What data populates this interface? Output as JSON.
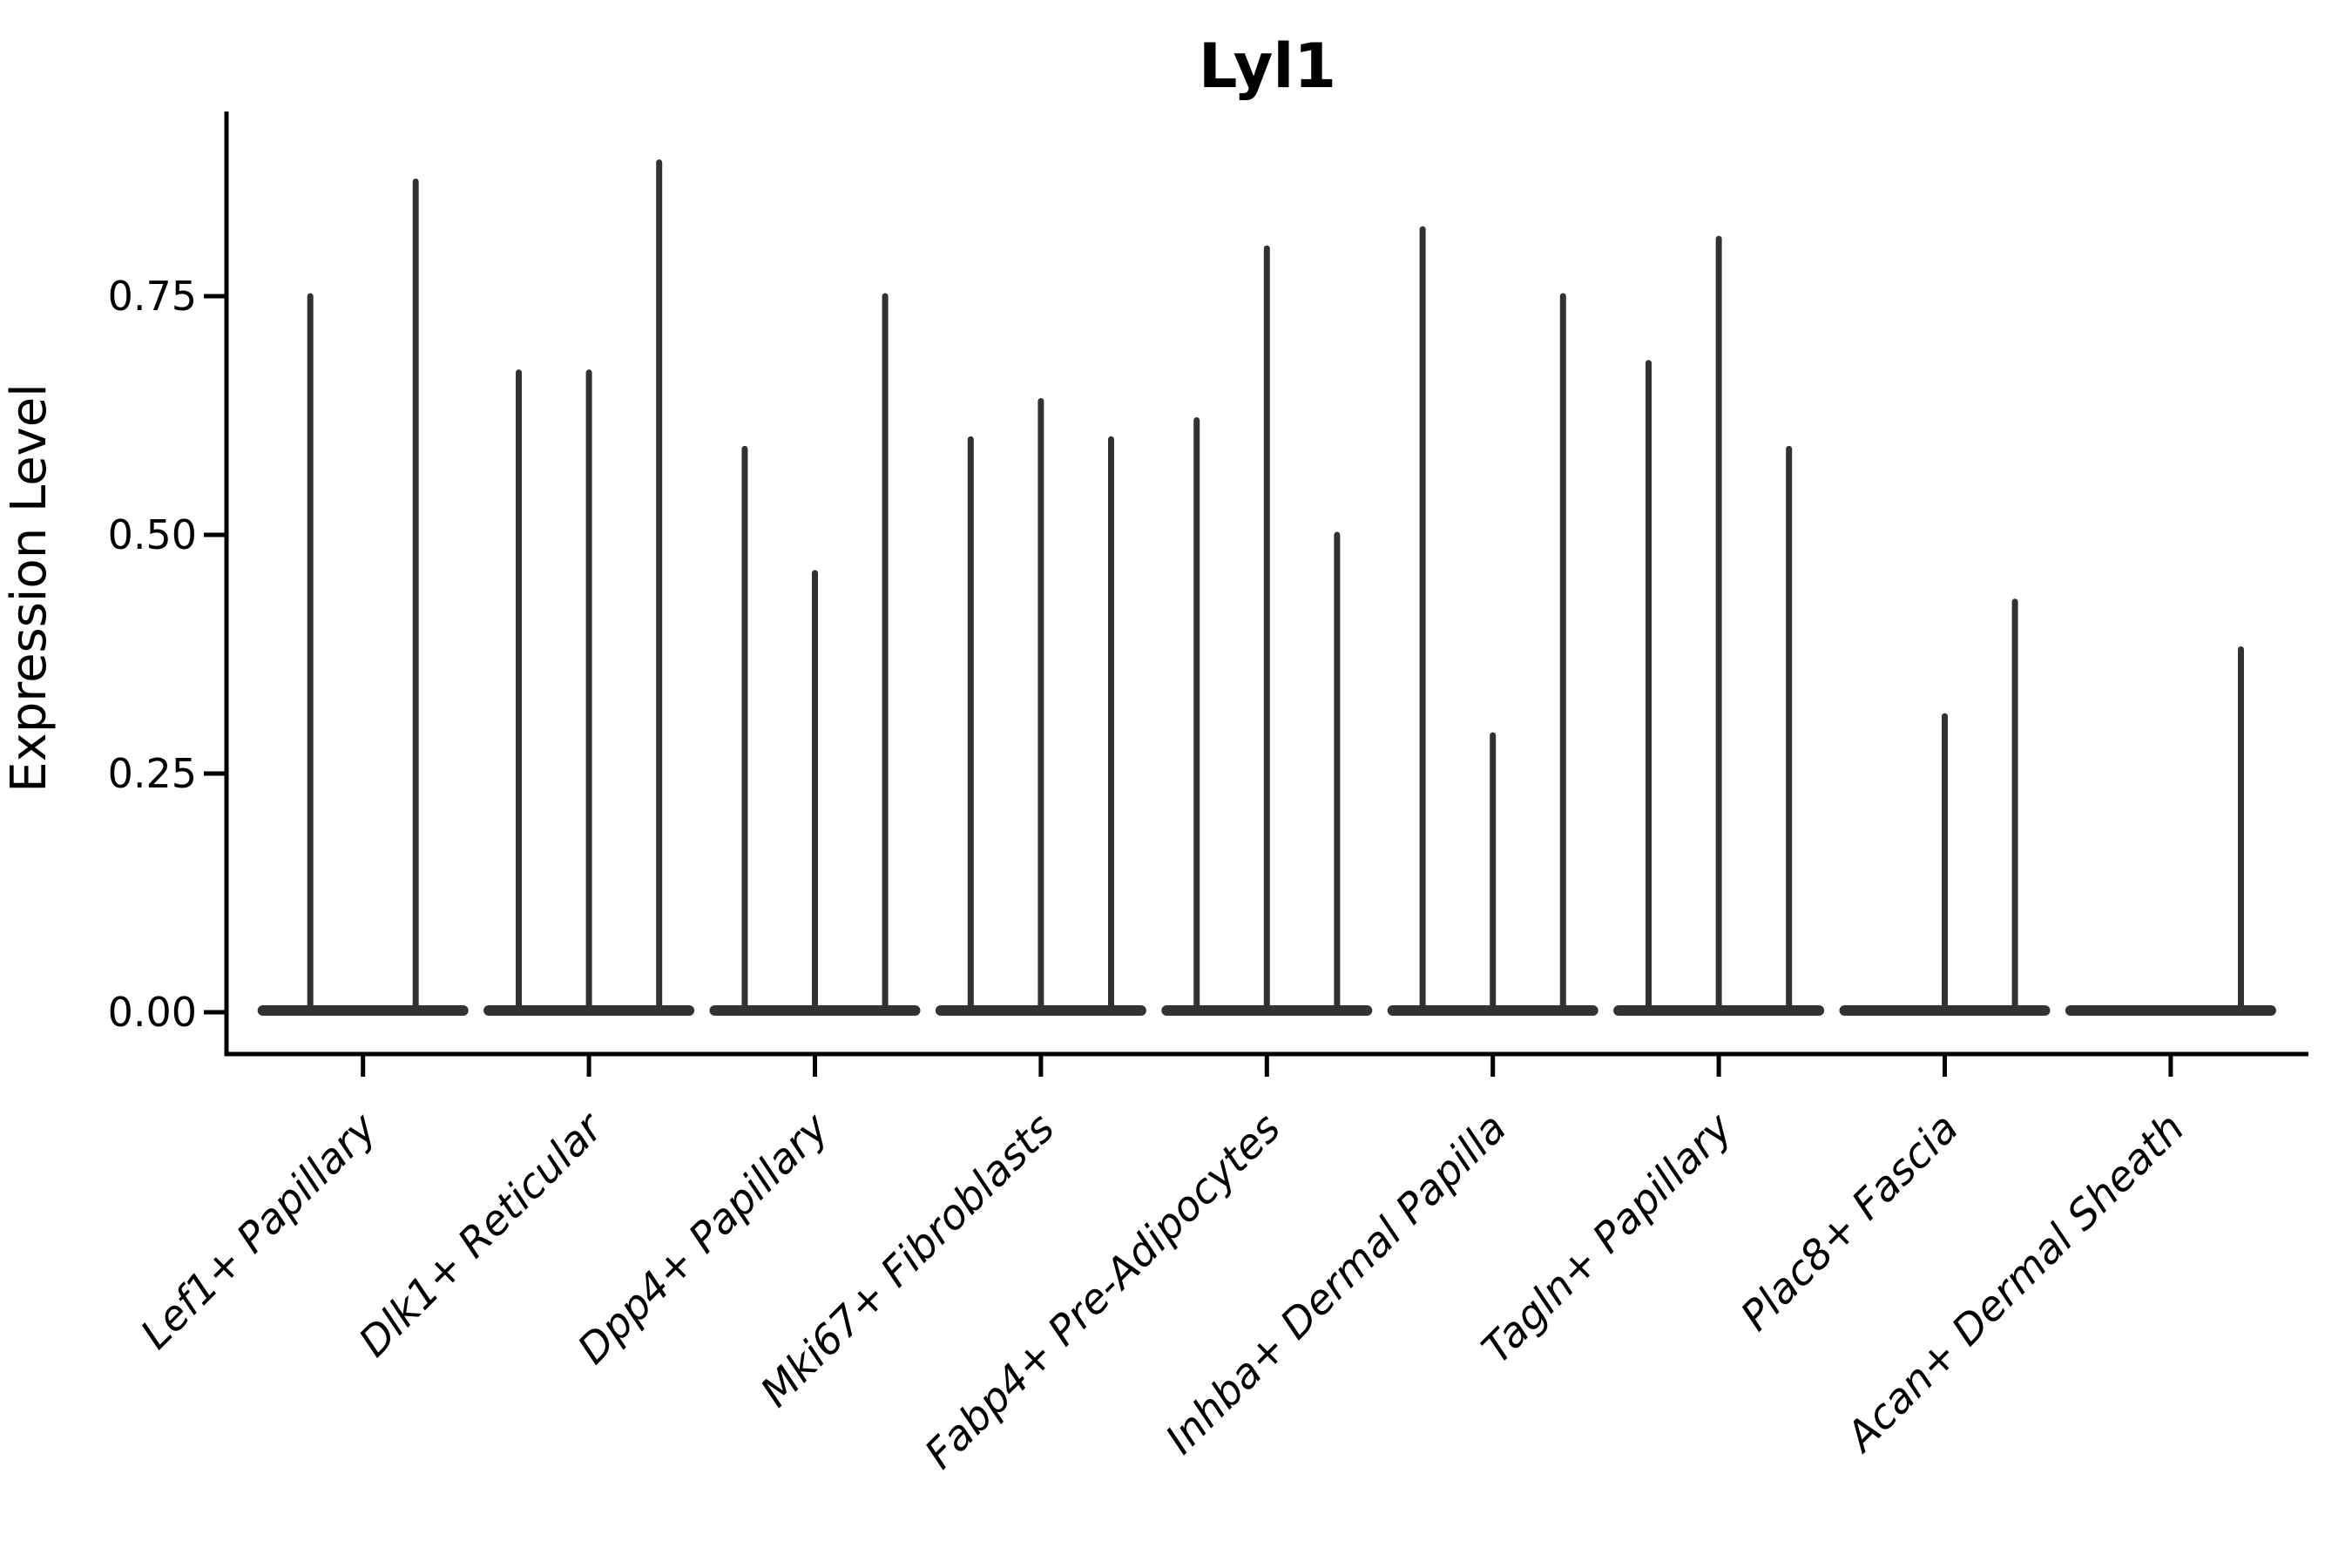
{
  "chart_data": {
    "type": "violin",
    "title": "Lyl1",
    "xlabel": "",
    "ylabel": "Expression Level",
    "ytick_labels": [
      "0.00",
      "0.25",
      "0.50",
      "0.75"
    ],
    "ytick_values": [
      0.0,
      0.25,
      0.5,
      0.75
    ],
    "ylim": [
      -0.045,
      0.945
    ],
    "grid": false,
    "legend": "none",
    "violin_color": "#323232",
    "axis_color": "#000000",
    "note": "Each category shows 1-3 extremely narrow violins: a flat base at 0 with a thin spike to the listed max expression value; offset is the violin center as a fraction of the group width",
    "categories": [
      {
        "label": "Lef1+ Papillary",
        "violins": [
          {
            "offset": -0.25,
            "max": 0.75
          },
          {
            "offset": 0.25,
            "max": 0.87
          }
        ]
      },
      {
        "label": "Dlk1+ Reticular",
        "violins": [
          {
            "offset": -0.333,
            "max": 0.67
          },
          {
            "offset": 0.0,
            "max": 0.67
          },
          {
            "offset": 0.333,
            "max": 0.89
          }
        ]
      },
      {
        "label": "Dpp4+ Papillary",
        "violins": [
          {
            "offset": -0.333,
            "max": 0.59
          },
          {
            "offset": 0.0,
            "max": 0.46
          },
          {
            "offset": 0.333,
            "max": 0.75
          }
        ]
      },
      {
        "label": "Mki67+ Fibroblasts",
        "violins": [
          {
            "offset": -0.333,
            "max": 0.6
          },
          {
            "offset": 0.0,
            "max": 0.64
          },
          {
            "offset": 0.333,
            "max": 0.6
          }
        ]
      },
      {
        "label": "Fabp4+ Pre-Adipocytes",
        "violins": [
          {
            "offset": -0.333,
            "max": 0.62
          },
          {
            "offset": 0.0,
            "max": 0.8
          },
          {
            "offset": 0.333,
            "max": 0.5
          }
        ]
      },
      {
        "label": "Inhba+ Dermal Papilla",
        "violins": [
          {
            "offset": -0.333,
            "max": 0.82
          },
          {
            "offset": 0.0,
            "max": 0.29
          },
          {
            "offset": 0.333,
            "max": 0.75
          }
        ]
      },
      {
        "label": "Tagln+ Papillary",
        "violins": [
          {
            "offset": -0.333,
            "max": 0.68
          },
          {
            "offset": 0.0,
            "max": 0.81
          },
          {
            "offset": 0.333,
            "max": 0.59
          }
        ]
      },
      {
        "label": "Plac8+ Fascia",
        "violins": [
          {
            "offset": -0.333,
            "max": 0.0
          },
          {
            "offset": 0.0,
            "max": 0.31
          },
          {
            "offset": 0.333,
            "max": 0.43
          }
        ]
      },
      {
        "label": "Acan+ Dermal Sheath",
        "violins": [
          {
            "offset": -0.333,
            "max": 0.0
          },
          {
            "offset": 0.0,
            "max": 0.0
          },
          {
            "offset": 0.333,
            "max": 0.38
          }
        ]
      }
    ]
  }
}
